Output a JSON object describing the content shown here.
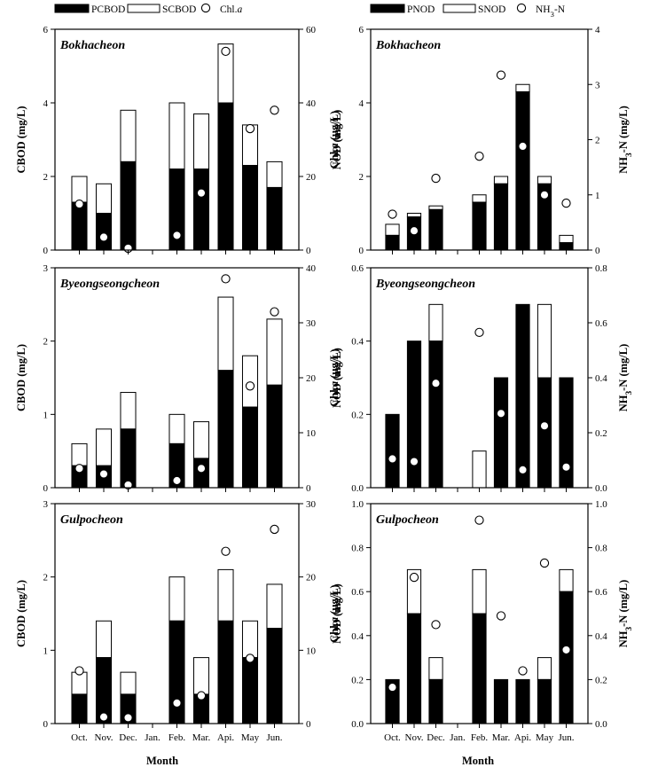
{
  "figure": {
    "xlabel": "Month",
    "months": [
      "Oct.",
      "Nov.",
      "Dec.",
      "Jan.",
      "Feb.",
      "Mar.",
      "Api.",
      "May",
      "Jun."
    ]
  },
  "legend_left": [
    {
      "label": "PCBOD",
      "style": "black-bar"
    },
    {
      "label": "SCBOD",
      "style": "white-bar"
    },
    {
      "label": "Chl.a",
      "style": "open-circle"
    }
  ],
  "legend_right": [
    {
      "label": "PNOD",
      "style": "black-bar"
    },
    {
      "label": "SNOD",
      "style": "white-bar"
    },
    {
      "label": "NH3-N",
      "style": "open-circle"
    }
  ],
  "colors": {
    "particulate": "#000000",
    "soluble": "#ffffff",
    "outline": "#000000"
  },
  "chart_data": [
    {
      "type": "bar",
      "stacked": true,
      "title": "Bokhacheon",
      "categories": [
        "Oct.",
        "Nov.",
        "Dec.",
        "Jan.",
        "Feb.",
        "Mar.",
        "Api.",
        "May",
        "Jun."
      ],
      "series": [
        {
          "name": "PCBOD",
          "values": [
            1.3,
            1.0,
            2.4,
            null,
            2.2,
            2.2,
            4.0,
            2.3,
            1.7
          ]
        },
        {
          "name": "SCBOD",
          "values": [
            0.7,
            0.8,
            1.4,
            null,
            1.8,
            1.5,
            1.6,
            1.1,
            0.7
          ]
        }
      ],
      "points": {
        "name": "Chl.a",
        "values": [
          12.5,
          3.5,
          0.5,
          null,
          4.0,
          15.5,
          54.0,
          33.0,
          38.0
        ]
      },
      "ylabel": "CBOD (mg/L)",
      "ylim": [
        0,
        6
      ],
      "yticks": [
        0,
        2,
        4,
        6
      ],
      "y2label": "Chl.a (μg/L)",
      "y2lim": [
        0,
        60
      ],
      "y2ticks": [
        0,
        20,
        40,
        60
      ]
    },
    {
      "type": "bar",
      "stacked": true,
      "title": "Bokhacheon",
      "categories": [
        "Oct.",
        "Nov.",
        "Dec.",
        "Jan.",
        "Feb.",
        "Mar.",
        "Api.",
        "May",
        "Jun."
      ],
      "series": [
        {
          "name": "PNOD",
          "values": [
            0.4,
            0.9,
            1.1,
            null,
            1.3,
            1.8,
            4.3,
            1.8,
            0.2
          ]
        },
        {
          "name": "SNOD",
          "values": [
            0.3,
            0.1,
            0.1,
            null,
            0.2,
            0.2,
            0.2,
            0.2,
            0.2
          ]
        }
      ],
      "points": {
        "name": "NH3-N",
        "values": [
          0.65,
          0.35,
          1.3,
          null,
          1.7,
          3.17,
          1.88,
          1.0,
          0.85
        ]
      },
      "ylabel": "NOD (mg/L)",
      "ylim": [
        0,
        6
      ],
      "yticks": [
        0,
        2,
        4,
        6
      ],
      "y2label": "NH3-N (mg/L)",
      "y2lim": [
        0,
        4
      ],
      "y2ticks": [
        0,
        1,
        2,
        3,
        4
      ]
    },
    {
      "type": "bar",
      "stacked": true,
      "title": "Byeongseongcheon",
      "categories": [
        "Oct.",
        "Nov.",
        "Dec.",
        "Jan.",
        "Feb.",
        "Mar.",
        "Api.",
        "May",
        "Jun."
      ],
      "series": [
        {
          "name": "PCBOD",
          "values": [
            0.3,
            0.3,
            0.8,
            null,
            0.6,
            0.4,
            1.6,
            1.1,
            1.4
          ]
        },
        {
          "name": "SCBOD",
          "values": [
            0.3,
            0.5,
            0.5,
            null,
            0.4,
            0.5,
            1.0,
            0.7,
            0.9
          ]
        }
      ],
      "points": {
        "name": "Chl.a",
        "values": [
          3.5,
          2.5,
          0.5,
          null,
          1.3,
          3.5,
          38.0,
          18.5,
          32.0
        ]
      },
      "ylabel": "CBOD (mg/L)",
      "ylim": [
        0,
        3
      ],
      "yticks": [
        0,
        1,
        2,
        3
      ],
      "y2label": "Chl.a (μg/L)",
      "y2lim": [
        0,
        40
      ],
      "y2ticks": [
        0,
        10,
        20,
        30,
        40
      ]
    },
    {
      "type": "bar",
      "stacked": true,
      "title": "Byeongseongcheon",
      "categories": [
        "Oct.",
        "Nov.",
        "Dec.",
        "Jan.",
        "Feb.",
        "Mar.",
        "Api.",
        "May",
        "Jun."
      ],
      "series": [
        {
          "name": "PNOD",
          "values": [
            0.2,
            0.4,
            0.4,
            null,
            0.0,
            0.3,
            0.5,
            0.3,
            0.3
          ]
        },
        {
          "name": "SNOD",
          "values": [
            0.0,
            0.0,
            0.1,
            null,
            0.1,
            0.0,
            0.0,
            0.2,
            0.0
          ]
        }
      ],
      "points": {
        "name": "NH3-N",
        "values": [
          0.105,
          0.095,
          0.38,
          null,
          0.565,
          0.27,
          0.065,
          0.225,
          0.075
        ]
      },
      "ylabel": "NOD (mg/L)",
      "ylim": [
        0,
        0.6
      ],
      "yticks": [
        0.0,
        0.2,
        0.4,
        0.6
      ],
      "y2label": "NH3-N (mg/L)",
      "y2lim": [
        0,
        0.8
      ],
      "y2ticks": [
        0.0,
        0.2,
        0.4,
        0.6,
        0.8
      ]
    },
    {
      "type": "bar",
      "stacked": true,
      "title": "Gulpocheon",
      "categories": [
        "Oct.",
        "Nov.",
        "Dec.",
        "Jan.",
        "Feb.",
        "Mar.",
        "Api.",
        "May",
        "Jun."
      ],
      "series": [
        {
          "name": "PCBOD",
          "values": [
            0.4,
            0.9,
            0.4,
            null,
            1.4,
            0.4,
            1.4,
            0.9,
            1.3
          ]
        },
        {
          "name": "SCBOD",
          "values": [
            0.3,
            0.5,
            0.3,
            null,
            0.6,
            0.5,
            0.7,
            0.5,
            0.6
          ]
        }
      ],
      "points": {
        "name": "Chl.a",
        "values": [
          7.2,
          0.9,
          0.8,
          null,
          2.8,
          3.8,
          23.5,
          8.9,
          26.5
        ]
      },
      "ylabel": "CBOD (mg/L)",
      "ylim": [
        0,
        3
      ],
      "yticks": [
        0,
        1,
        2,
        3
      ],
      "y2label": "Chl.a (μg/L)",
      "y2lim": [
        0,
        30
      ],
      "y2ticks": [
        0,
        10,
        20,
        30
      ]
    },
    {
      "type": "bar",
      "stacked": true,
      "title": "Gulpocheon",
      "categories": [
        "Oct.",
        "Nov.",
        "Dec.",
        "Jan.",
        "Feb.",
        "Mar.",
        "Api.",
        "May",
        "Jun."
      ],
      "series": [
        {
          "name": "PNOD",
          "values": [
            0.2,
            0.5,
            0.2,
            null,
            0.5,
            0.2,
            0.2,
            0.2,
            0.6
          ]
        },
        {
          "name": "SNOD",
          "values": [
            0.0,
            0.2,
            0.1,
            null,
            0.2,
            0.0,
            0.0,
            0.1,
            0.1
          ]
        }
      ],
      "points": {
        "name": "NH3-N",
        "values": [
          0.165,
          0.665,
          0.45,
          null,
          0.925,
          0.49,
          0.24,
          0.73,
          0.335
        ]
      },
      "ylabel": "NOD (mg/L)",
      "ylim": [
        0,
        1.0
      ],
      "yticks": [
        0.0,
        0.2,
        0.4,
        0.6,
        0.8,
        1.0
      ],
      "y2label": "NH3-N (mg/L)",
      "y2lim": [
        0,
        1.0
      ],
      "y2ticks": [
        0.0,
        0.2,
        0.4,
        0.6,
        0.8,
        1.0
      ]
    }
  ]
}
